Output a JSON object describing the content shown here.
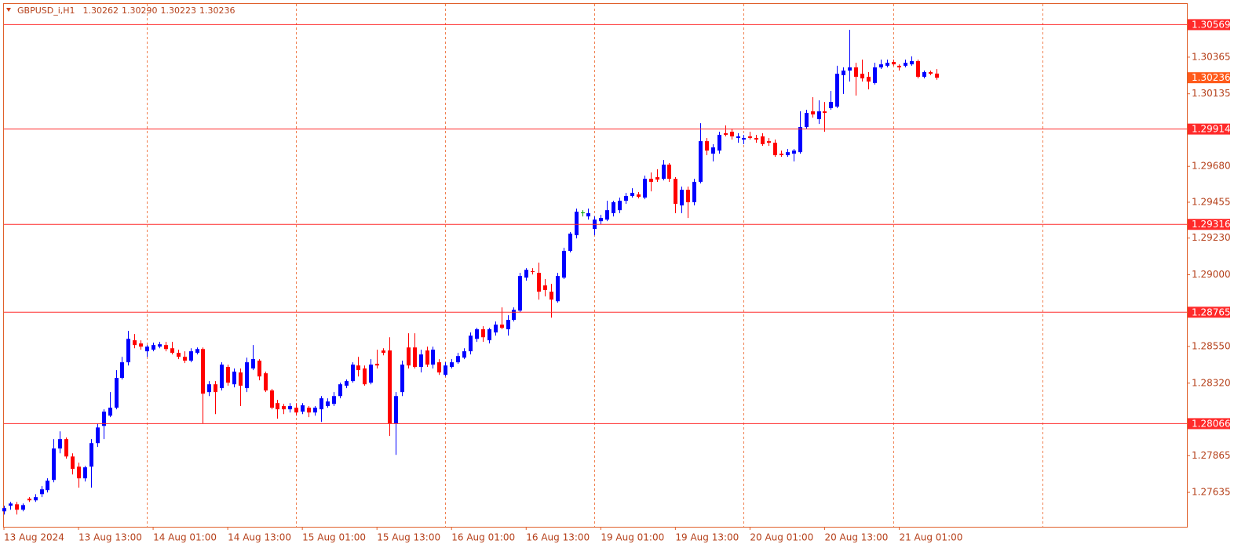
{
  "chart_data": {
    "type": "candlestick",
    "symbol": "GBPUSD_i,H1",
    "ohlc_labels": [
      "1.30262",
      "1.30290",
      "1.30223",
      "1.30236"
    ],
    "categories": [
      "13 Aug 2024",
      null,
      null,
      null,
      null,
      null,
      null,
      null,
      null,
      null,
      null,
      null,
      "13 Aug 13:00",
      null,
      null,
      null,
      null,
      null,
      null,
      null,
      null,
      null,
      null,
      null,
      "14 Aug 01:00",
      null,
      null,
      null,
      null,
      null,
      null,
      null,
      null,
      null,
      null,
      null,
      "14 Aug 13:00",
      null,
      null,
      null,
      null,
      null,
      null,
      null,
      null,
      null,
      null,
      null,
      "15 Aug 01:00",
      null,
      null,
      null,
      null,
      null,
      null,
      null,
      null,
      null,
      null,
      null,
      "15 Aug 13:00",
      null,
      null,
      null,
      null,
      null,
      null,
      null,
      null,
      null,
      null,
      null,
      "16 Aug 01:00",
      null,
      null,
      null,
      null,
      null,
      null,
      null,
      null,
      null,
      null,
      null,
      "16 Aug 13:00",
      null,
      null,
      null,
      null,
      null,
      null,
      null,
      null,
      null,
      null,
      null,
      "19 Aug 01:00",
      null,
      null,
      null,
      null,
      null,
      null,
      null,
      null,
      null,
      null,
      null,
      "19 Aug 13:00",
      null,
      null,
      null,
      null,
      null,
      null,
      null,
      null,
      null,
      null,
      null,
      "20 Aug 01:00",
      null,
      null,
      null,
      null,
      null,
      null,
      null,
      null,
      null,
      null,
      null,
      "20 Aug 13:00",
      null,
      null,
      null,
      null,
      null,
      null,
      null,
      null,
      null,
      null,
      null,
      "21 Aug 01:00",
      null,
      null,
      null,
      null,
      null,
      null
    ],
    "open": [
      1.27516,
      1.27551,
      1.2756,
      1.27526,
      1.27595,
      1.27585,
      1.27624,
      1.27649,
      1.27713,
      1.2791,
      1.27969,
      1.2786,
      1.27796,
      1.27723,
      1.27796,
      1.27944,
      1.28052,
      1.28116,
      1.28166,
      1.28353,
      1.28451,
      1.28589,
      1.28569,
      1.2852,
      1.2853,
      1.28549,
      1.28559,
      1.28539,
      1.2851,
      1.28485,
      1.28461,
      1.2851,
      1.28534,
      1.28264,
      1.28313,
      1.28289,
      1.28422,
      1.28313,
      1.28387,
      1.28289,
      1.28412,
      1.28461,
      1.28382,
      1.28274,
      1.28195,
      1.28176,
      1.28156,
      1.28166,
      1.28141,
      1.28166,
      1.28136,
      1.28156,
      1.28176,
      1.2819,
      1.28239,
      1.28304,
      1.28333,
      1.28431,
      1.28412,
      1.28323,
      1.28441,
      1.28525,
      1.28525,
      1.28067,
      1.28264,
      1.28544,
      1.28544,
      1.28422,
      1.28525,
      1.28436,
      1.28451,
      1.28372,
      1.28422,
      1.28451,
      1.2848,
      1.2852,
      1.28598,
      1.28658,
      1.28589,
      1.28638,
      1.28687,
      1.28658,
      1.28717,
      1.28775,
      1.28982,
      1.29022,
      1.29012,
      1.28933,
      1.28894,
      1.28834,
      1.28982,
      1.2915,
      1.29248,
      1.29391,
      1.29366,
      1.29287,
      1.29336,
      1.29346,
      1.29386,
      1.29405,
      1.29464,
      1.29494,
      1.29504,
      1.29484,
      1.29602,
      1.29612,
      1.29602,
      1.29691,
      1.29602,
      1.29435,
      1.29533,
      1.29455,
      1.29583,
      1.29838,
      1.2976,
      1.29779,
      1.29888,
      1.29897,
      1.29858,
      1.29848,
      1.29868,
      1.29858,
      1.29868,
      1.29838,
      1.29828,
      1.2976,
      1.2975,
      1.2976,
      1.29769,
      1.29927,
      1.30025,
      1.29976,
      1.30025,
      1.30045,
      1.30055,
      1.30252,
      1.30281,
      1.30301,
      1.30261,
      1.30242,
      1.30203,
      1.30301,
      1.30311,
      1.30335,
      1.30311,
      1.30311,
      1.3032,
      1.3034,
      1.30242,
      1.30271,
      1.30262
    ],
    "high": [
      1.27551,
      1.27575,
      1.27575,
      1.27565,
      1.27605,
      1.27624,
      1.27674,
      1.27723,
      1.27969,
      1.28018,
      1.27979,
      1.2788,
      1.27821,
      1.27801,
      1.27969,
      1.28067,
      1.28156,
      1.28264,
      1.28402,
      1.28485,
      1.28648,
      1.28628,
      1.28589,
      1.28559,
      1.28574,
      1.28579,
      1.28579,
      1.28579,
      1.2853,
      1.2852,
      1.28539,
      1.28544,
      1.28544,
      1.28333,
      1.28333,
      1.28451,
      1.28436,
      1.28412,
      1.28412,
      1.2848,
      1.28559,
      1.28471,
      1.28392,
      1.28284,
      1.28215,
      1.2819,
      1.28195,
      1.28195,
      1.28195,
      1.28176,
      1.28176,
      1.28239,
      1.28225,
      1.28264,
      1.28323,
      1.28343,
      1.28451,
      1.28485,
      1.28431,
      1.28471,
      1.2853,
      1.28539,
      1.28608,
      1.28264,
      1.28461,
      1.28633,
      1.28633,
      1.2853,
      1.28549,
      1.28549,
      1.28471,
      1.28451,
      1.28471,
      1.2851,
      1.28539,
      1.28638,
      1.28667,
      1.28677,
      1.28667,
      1.28707,
      1.28795,
      1.28746,
      1.28795,
      1.29012,
      1.29041,
      1.29041,
      1.29076,
      1.28973,
      1.28943,
      1.29012,
      1.29169,
      1.29268,
      1.29415,
      1.29405,
      1.29415,
      1.29366,
      1.29376,
      1.29464,
      1.29464,
      1.29484,
      1.29514,
      1.29543,
      1.29519,
      1.29622,
      1.29642,
      1.29662,
      1.2972,
      1.29701,
      1.29612,
      1.29553,
      1.29553,
      1.29602,
      1.29951,
      1.29858,
      1.29819,
      1.29897,
      1.29937,
      1.29917,
      1.29888,
      1.29878,
      1.29897,
      1.29878,
      1.29888,
      1.29858,
      1.29848,
      1.29779,
      1.29789,
      1.29789,
      1.30025,
      1.30035,
      1.30114,
      1.30094,
      1.30084,
      1.30153,
      1.30311,
      1.30301,
      1.30537,
      1.3033,
      1.3035,
      1.30271,
      1.3033,
      1.3035,
      1.3035,
      1.3035,
      1.3032,
      1.3035,
      1.3037,
      1.3035,
      1.30281,
      1.30281,
      1.3029
    ],
    "low": [
      1.27496,
      1.27526,
      1.27496,
      1.27516,
      1.27575,
      1.27575,
      1.27605,
      1.27634,
      1.27698,
      1.2788,
      1.27846,
      1.27747,
      1.27664,
      1.27703,
      1.27664,
      1.2792,
      1.27969,
      1.28107,
      1.28156,
      1.28343,
      1.28431,
      1.28539,
      1.2853,
      1.28485,
      1.2852,
      1.28539,
      1.2852,
      1.285,
      1.28471,
      1.28446,
      1.28451,
      1.285,
      1.28067,
      1.28239,
      1.28126,
      1.28274,
      1.28304,
      1.28294,
      1.28176,
      1.28264,
      1.28402,
      1.28338,
      1.28264,
      1.28156,
      1.28097,
      1.28126,
      1.28136,
      1.28116,
      1.28126,
      1.28107,
      1.28116,
      1.28077,
      1.28166,
      1.28176,
      1.28225,
      1.28289,
      1.28323,
      1.28362,
      1.28304,
      1.28313,
      1.28412,
      1.28495,
      1.27989,
      1.2787,
      1.28239,
      1.28412,
      1.28412,
      1.28387,
      1.28422,
      1.28412,
      1.28372,
      1.28362,
      1.28412,
      1.28441,
      1.28471,
      1.285,
      1.28579,
      1.28579,
      1.28569,
      1.28618,
      1.28658,
      1.28618,
      1.28707,
      1.28766,
      1.28963,
      1.29002,
      1.28844,
      1.28864,
      1.28731,
      1.28825,
      1.28973,
      1.2914,
      1.29228,
      1.29366,
      1.29346,
      1.29248,
      1.29317,
      1.29336,
      1.29366,
      1.29386,
      1.29445,
      1.29484,
      1.29479,
      1.29474,
      1.29523,
      1.29583,
      1.29592,
      1.29583,
      1.29386,
      1.29386,
      1.29356,
      1.29435,
      1.29573,
      1.2975,
      1.29711,
      1.2976,
      1.29868,
      1.29848,
      1.29828,
      1.29819,
      1.29848,
      1.29828,
      1.29809,
      1.29809,
      1.2974,
      1.2974,
      1.2974,
      1.29711,
      1.2976,
      1.29917,
      1.29986,
      1.29946,
      1.29897,
      1.30035,
      1.30045,
      1.30134,
      1.30212,
      1.30124,
      1.30212,
      1.30163,
      1.30193,
      1.30291,
      1.30301,
      1.30311,
      1.30281,
      1.30301,
      1.30311,
      1.30232,
      1.30232,
      1.30252,
      1.30223
    ],
    "close": [
      1.27536,
      1.27565,
      1.27526,
      1.27555,
      1.27585,
      1.27605,
      1.27654,
      1.27708,
      1.2791,
      1.27969,
      1.2786,
      1.27782,
      1.27723,
      1.27792,
      1.27944,
      1.28042,
      1.28141,
      1.28166,
      1.28353,
      1.28451,
      1.28598,
      1.28559,
      1.28549,
      1.28549,
      1.28559,
      1.28564,
      1.28534,
      1.2851,
      1.28485,
      1.28461,
      1.2852,
      1.28534,
      1.28254,
      1.28313,
      1.28264,
      1.28436,
      1.28323,
      1.28392,
      1.28304,
      1.28451,
      1.28471,
      1.28362,
      1.28274,
      1.28166,
      1.28156,
      1.28156,
      1.28176,
      1.28136,
      1.28181,
      1.28136,
      1.28166,
      1.28225,
      1.28205,
      1.28239,
      1.28313,
      1.28333,
      1.28436,
      1.28402,
      1.28313,
      1.28436,
      1.28431,
      1.2851,
      1.28067,
      1.28239,
      1.28436,
      1.28431,
      1.28422,
      1.285,
      1.28436,
      1.2853,
      1.28387,
      1.28431,
      1.28451,
      1.2849,
      1.2852,
      1.28618,
      1.28658,
      1.28608,
      1.28658,
      1.28687,
      1.28667,
      1.28717,
      1.2878,
      1.28992,
      1.29031,
      1.29017,
      1.28894,
      1.28904,
      1.28844,
      1.28992,
      1.2915,
      1.29258,
      1.29396,
      1.29391,
      1.29386,
      1.29346,
      1.29356,
      1.29405,
      1.29455,
      1.29464,
      1.29494,
      1.29514,
      1.29489,
      1.29602,
      1.29583,
      1.29597,
      1.29691,
      1.29602,
      1.29445,
      1.29533,
      1.29455,
      1.29583,
      1.29838,
      1.29779,
      1.29799,
      1.29878,
      1.29878,
      1.29868,
      1.29868,
      1.29858,
      1.29858,
      1.29848,
      1.29819,
      1.29828,
      1.2975,
      1.2975,
      1.29769,
      1.29779,
      1.29927,
      1.30015,
      1.30006,
      1.30025,
      1.30015,
      1.30084,
      1.30261,
      1.30281,
      1.30301,
      1.30242,
      1.30232,
      1.30212,
      1.30301,
      1.3032,
      1.3033,
      1.3032,
      1.30301,
      1.3033,
      1.3034,
      1.30242,
      1.30271,
      1.30261,
      1.30236
    ],
    "ylim": [
      1.27419,
      1.30699
    ],
    "yticks": [
      1.27635,
      1.27865,
      {
        "value": 1.2832,
        "label": "1.28320"
      },
      {
        "value": 1.2855,
        "label": "1.28550"
      },
      {
        "value": 1.29,
        "label": "1.29000"
      },
      {
        "value": 1.2923,
        "label": "1.29230"
      },
      1.29455,
      {
        "value": 1.2968,
        "label": "1.29680"
      },
      1.30135,
      1.30365
    ],
    "levels": [
      1.30569,
      1.29914,
      1.29316,
      1.28765,
      1.28066
    ],
    "bull_color": "#0000ff",
    "bear_color": "#ff0000",
    "doji_color": "#00a000",
    "level_color": "#ff2a2a",
    "price_label_color": "#ff5a1a",
    "grid": true
  }
}
